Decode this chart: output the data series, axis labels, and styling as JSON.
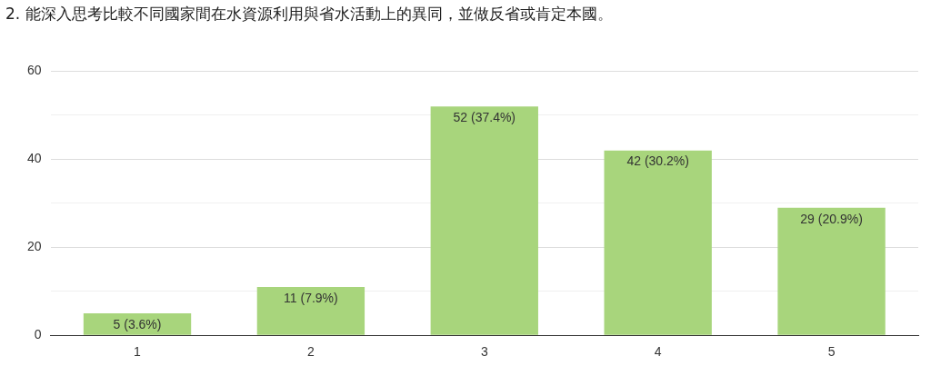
{
  "chart_data": {
    "type": "bar",
    "title": "2. 能深入思考比較不同國家間在水資源利用與省水活動上的異同，並做反省或肯定本國。",
    "categories": [
      "1",
      "2",
      "3",
      "4",
      "5"
    ],
    "values": [
      5,
      11,
      52,
      42,
      29
    ],
    "color": "#a8d57c",
    "value_labels": [
      "5 (3.6%)",
      "11 (7.9%)",
      "52 (37.4%)",
      "42 (30.2%)",
      "29 (20.9%)"
    ],
    "ylim": [
      0,
      60
    ],
    "yticks": [
      0,
      {
        "value": 10,
        "label": null
      },
      20,
      {
        "value": 30,
        "label": null
      },
      40,
      {
        "value": 50,
        "label": null
      },
      60
    ],
    "grid": "y",
    "legend": false
  }
}
